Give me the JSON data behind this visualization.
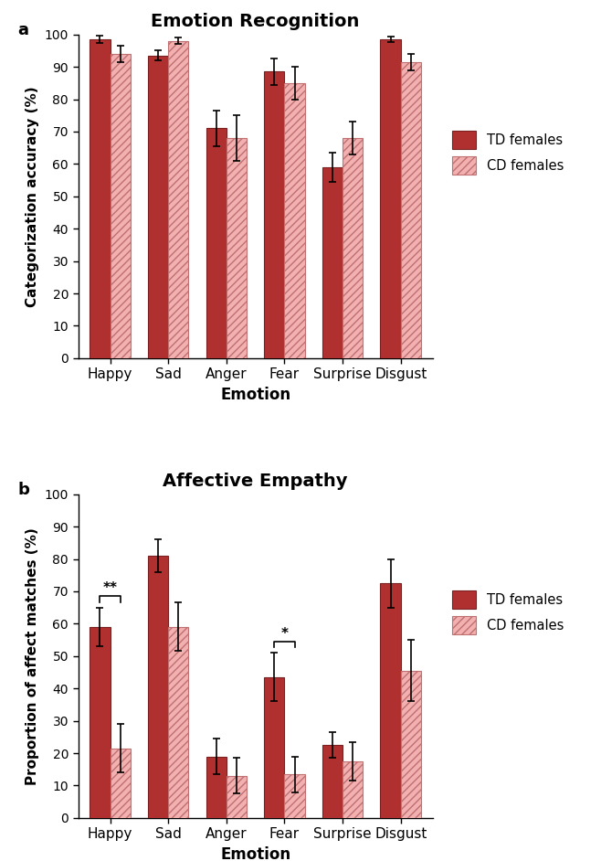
{
  "title_a": "Emotion Recognition",
  "title_b": "Affective Empathy",
  "xlabel": "Emotion",
  "ylabel_a": "Categorization accuracy (%)",
  "ylabel_b": "Proportion of affect matches (%)",
  "categories": [
    "Happy",
    "Sad",
    "Anger",
    "Fear",
    "Surprise",
    "Disgust"
  ],
  "panel_a": {
    "td_values": [
      98.5,
      93.5,
      71.0,
      88.5,
      59.0,
      98.5
    ],
    "cd_values": [
      94.0,
      98.0,
      68.0,
      85.0,
      68.0,
      91.5
    ],
    "td_errors": [
      1.0,
      1.5,
      5.5,
      4.0,
      4.5,
      0.8
    ],
    "cd_errors": [
      2.5,
      1.0,
      7.0,
      5.0,
      5.0,
      2.5
    ]
  },
  "panel_b": {
    "td_values": [
      59.0,
      81.0,
      19.0,
      43.5,
      22.5,
      72.5
    ],
    "cd_values": [
      21.5,
      59.0,
      13.0,
      13.5,
      17.5,
      45.5
    ],
    "td_errors": [
      6.0,
      5.0,
      5.5,
      7.5,
      4.0,
      7.5
    ],
    "cd_errors": [
      7.5,
      7.5,
      5.5,
      5.5,
      6.0,
      9.5
    ]
  },
  "td_color": "#b03030",
  "cd_color_face": "#f2b0b0",
  "cd_hatch": "////",
  "cd_edge": "#c07070",
  "td_edge": "#7a2020",
  "ylim_a": [
    0,
    100
  ],
  "ylim_b": [
    0,
    100
  ],
  "yticks": [
    0,
    10,
    20,
    30,
    40,
    50,
    60,
    70,
    80,
    90,
    100
  ],
  "bar_width": 0.35,
  "sig_happy": "**",
  "sig_fear": "*",
  "panel_label_a": "a",
  "panel_label_b": "b"
}
